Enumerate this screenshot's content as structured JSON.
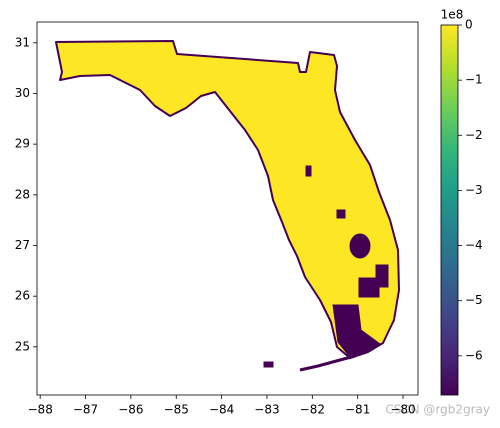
{
  "chart_data": {
    "type": "map",
    "xlim": [
      -88.07,
      -79.67
    ],
    "xticks": [
      {
        "value": -88,
        "label": "−88"
      },
      {
        "value": -87,
        "label": "−87"
      },
      {
        "value": -86,
        "label": "−86"
      },
      {
        "value": -85,
        "label": "−85"
      },
      {
        "value": -84,
        "label": "−84"
      },
      {
        "value": -83,
        "label": "−83"
      },
      {
        "value": -82,
        "label": "−82"
      },
      {
        "value": -81,
        "label": "−81"
      },
      {
        "value": -80,
        "label": "−80"
      }
    ],
    "ylim": [
      24.05,
      31.41
    ],
    "yticks": [
      25,
      26,
      27,
      28,
      29,
      30,
      31
    ],
    "colorbar": {
      "colormap": "viridis",
      "clim": [
        -6.71,
        0
      ],
      "ticks": [
        0,
        {
          "value": -1,
          "label": "−1"
        },
        {
          "value": -2,
          "label": "−2"
        },
        {
          "value": -3,
          "label": "−3"
        },
        {
          "value": -4,
          "label": "−4"
        },
        {
          "value": -5,
          "label": "−5"
        },
        {
          "value": -6,
          "label": "−6"
        }
      ],
      "offset_label": "1e8"
    },
    "land_color": "#fde725",
    "boundary_color": "#440154",
    "watermark": "CSDN @rgb2gray"
  }
}
